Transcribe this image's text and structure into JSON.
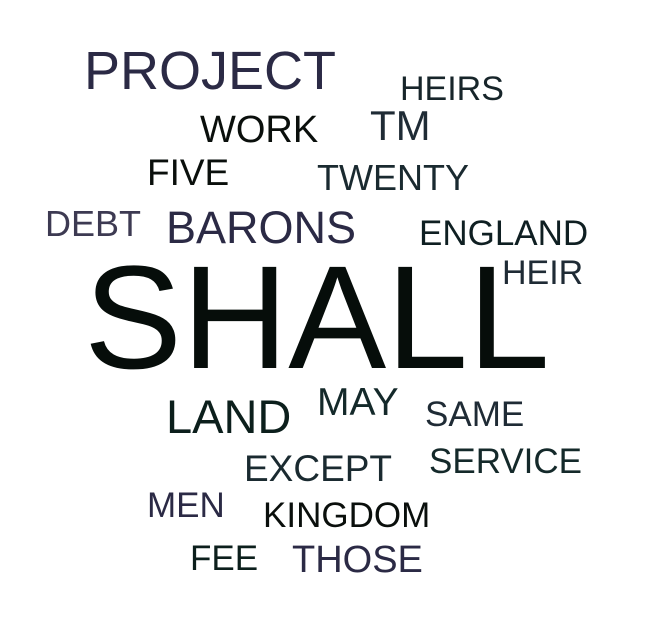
{
  "words": [
    {
      "text": "PROJECT",
      "color": "#2b2a45"
    },
    {
      "text": "HEIRS",
      "color": "#17252a"
    },
    {
      "text": "WORK",
      "color": "#0a0f0c"
    },
    {
      "text": "TM",
      "color": "#1f2b35"
    },
    {
      "text": "FIVE",
      "color": "#0a0f0c"
    },
    {
      "text": "TWENTY",
      "color": "#1a2a30"
    },
    {
      "text": "DEBT",
      "color": "#3d3a52"
    },
    {
      "text": "BARONS",
      "color": "#2b2a45"
    },
    {
      "text": "ENGLAND",
      "color": "#0f1f22"
    },
    {
      "text": "HEIR",
      "color": "#1f2b35"
    },
    {
      "text": "SHALL",
      "color": "#060d0a"
    },
    {
      "text": "LAND",
      "color": "#0c1f1c"
    },
    {
      "text": "MAY",
      "color": "#14292a"
    },
    {
      "text": "SAME",
      "color": "#1f2b35"
    },
    {
      "text": "EXCEPT",
      "color": "#1a2a30"
    },
    {
      "text": "SERVICE",
      "color": "#14292a"
    },
    {
      "text": "MEN",
      "color": "#2b2a45"
    },
    {
      "text": "KINGDOM",
      "color": "#0a0f0c"
    },
    {
      "text": "FEE",
      "color": "#0c1f1c"
    },
    {
      "text": "THOSE",
      "color": "#2b2a45"
    }
  ]
}
